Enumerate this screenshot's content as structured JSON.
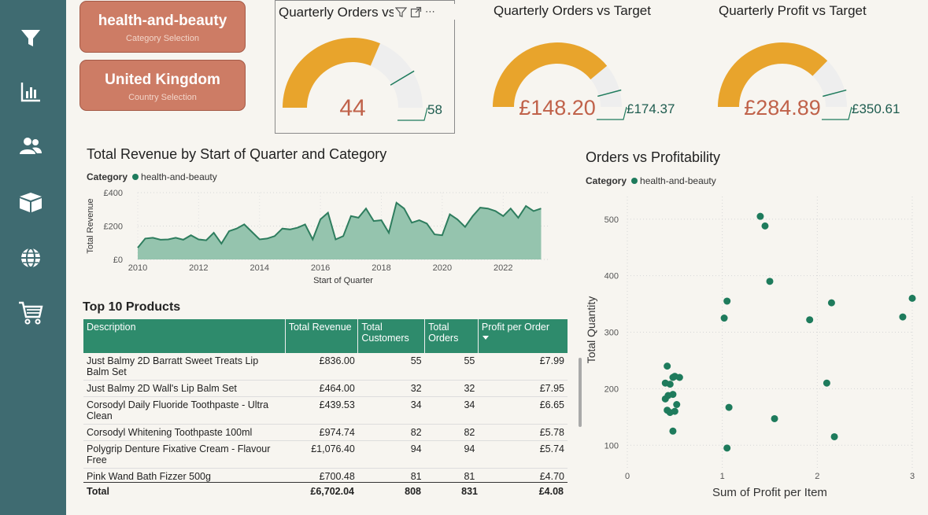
{
  "colors": {
    "sidebar": "#3f6b71",
    "slicer": "#cd7c65",
    "gauge_fill": "#e8a42c",
    "gauge_bg": "#eeeeee",
    "accent": "#1e7b5c",
    "area": "#95c4ae",
    "header": "#2e8b6c"
  },
  "nav": [
    {
      "name": "filter-icon"
    },
    {
      "name": "bar-chart-icon"
    },
    {
      "name": "users-icon"
    },
    {
      "name": "box-icon"
    },
    {
      "name": "globe-icon"
    },
    {
      "name": "cart-icon"
    }
  ],
  "slicers": [
    {
      "value": "health-and-beauty",
      "label": "Category Selection"
    },
    {
      "value": "United Kingdom",
      "label": "Country Selection"
    }
  ],
  "gauges": [
    {
      "title": "Quarterly Orders vs Target",
      "value_label": "44",
      "target_label": "58",
      "value": 44,
      "target": 58,
      "max": 70
    },
    {
      "title": "Quarterly Orders vs Target",
      "value_label": "£148.20",
      "target_label": "£174.37",
      "value": 148.2,
      "target": 174.37,
      "max": 190
    },
    {
      "title": "Quarterly Profit vs Target",
      "value_label": "£284.89",
      "target_label": "£350.61",
      "value": 284.89,
      "target": 350.61,
      "max": 382
    }
  ],
  "visual_header": {
    "filter": "filter-icon",
    "focus": "focus-mode-icon",
    "more": "⋯"
  },
  "revenue_chart": {
    "title": "Total Revenue by Start of Quarter and Category",
    "legend_label": "Category",
    "legend_item": "health-and-beauty",
    "chart_data": {
      "type": "area",
      "xlabel": "Start of Quarter",
      "ylabel": "Total Revenue",
      "xlim": [
        "2010-01-01",
        "2023-06-30"
      ],
      "ylim": [
        0,
        400
      ],
      "yticks": [
        "£0",
        "£200",
        "£400"
      ],
      "xticks": [
        "2010",
        "2012",
        "2014",
        "2016",
        "2018",
        "2020",
        "2022"
      ],
      "series": [
        {
          "name": "health-and-beauty",
          "x": [
            "2010-01",
            "2010-04",
            "2010-07",
            "2010-10",
            "2011-01",
            "2011-04",
            "2011-07",
            "2011-10",
            "2012-01",
            "2012-04",
            "2012-07",
            "2012-10",
            "2013-01",
            "2013-04",
            "2013-07",
            "2013-10",
            "2014-01",
            "2014-04",
            "2014-07",
            "2014-10",
            "2015-01",
            "2015-04",
            "2015-07",
            "2015-10",
            "2016-01",
            "2016-04",
            "2016-07",
            "2016-10",
            "2017-01",
            "2017-04",
            "2017-07",
            "2017-10",
            "2018-01",
            "2018-04",
            "2018-07",
            "2018-10",
            "2019-01",
            "2019-04",
            "2019-07",
            "2019-10",
            "2020-01",
            "2020-04",
            "2020-07",
            "2020-10",
            "2021-01",
            "2021-04",
            "2021-07",
            "2021-10",
            "2022-01",
            "2022-04",
            "2022-07",
            "2022-10",
            "2023-01",
            "2023-04"
          ],
          "values": [
            70,
            125,
            130,
            118,
            120,
            130,
            118,
            145,
            120,
            115,
            160,
            95,
            170,
            185,
            210,
            165,
            120,
            125,
            140,
            185,
            180,
            190,
            210,
            120,
            240,
            280,
            120,
            140,
            260,
            250,
            305,
            230,
            235,
            160,
            340,
            305,
            220,
            235,
            215,
            150,
            145,
            270,
            240,
            195,
            260,
            310,
            305,
            290,
            260,
            305,
            250,
            320,
            290,
            305
          ]
        }
      ]
    }
  },
  "top_products": {
    "title": "Top 10 Products",
    "columns": [
      "Description",
      "Total Revenue",
      "Total Customers",
      "Total Orders",
      "Profit per Order"
    ],
    "sort_icon": "sort-down-icon",
    "rows": [
      {
        "description": "Just Balmy 2D Barratt Sweet Treats Lip Balm Set",
        "revenue": "£836.00",
        "customers": "55",
        "orders": "55",
        "profit": "£7.99"
      },
      {
        "description": "Just Balmy 2D Wall's Lip Balm Set",
        "revenue": "£464.00",
        "customers": "32",
        "orders": "32",
        "profit": "£7.95"
      },
      {
        "description": "Corsodyl Daily Fluoride Toothpaste - Ultra Clean",
        "revenue": "£439.53",
        "customers": "34",
        "orders": "34",
        "profit": "£6.65"
      },
      {
        "description": "Corsodyl Whitening Toothpaste 100ml",
        "revenue": "£974.74",
        "customers": "82",
        "orders": "82",
        "profit": "£5.78"
      },
      {
        "description": "Polygrip Denture Fixative Cream - Flavour Free",
        "revenue": "£1,076.40",
        "customers": "94",
        "orders": "94",
        "profit": "£5.74"
      },
      {
        "description": "Pink Wand Bath Fizzer 500g",
        "revenue": "£700.48",
        "customers": "81",
        "orders": "81",
        "profit": "£4.70"
      }
    ],
    "total": {
      "description": "Total",
      "revenue": "£6,702.04",
      "customers": "808",
      "orders": "831",
      "profit": "£4.08"
    }
  },
  "scatter_chart": {
    "title": "Orders vs Profitability",
    "legend_label": "Category",
    "legend_item": "health-and-beauty",
    "chart_data": {
      "type": "scatter",
      "xlabel": "Sum of Profit per Item",
      "ylabel": "Total Quantity",
      "xlim": [
        0,
        3
      ],
      "ylim": [
        60,
        540
      ],
      "xticks": [
        "0",
        "1",
        "2",
        "3"
      ],
      "yticks": [
        "100",
        "200",
        "300",
        "400",
        "500"
      ],
      "points": [
        [
          1.4,
          505
        ],
        [
          1.45,
          488
        ],
        [
          1.5,
          390
        ],
        [
          1.05,
          355
        ],
        [
          1.02,
          325
        ],
        [
          2.15,
          352
        ],
        [
          1.92,
          322
        ],
        [
          3.0,
          360
        ],
        [
          2.9,
          327
        ],
        [
          2.1,
          210
        ],
        [
          2.18,
          115
        ],
        [
          1.55,
          147
        ],
        [
          1.07,
          167
        ],
        [
          1.05,
          95
        ],
        [
          0.42,
          240
        ],
        [
          0.5,
          222
        ],
        [
          0.48,
          220
        ],
        [
          0.55,
          220
        ],
        [
          0.4,
          210
        ],
        [
          0.45,
          208
        ],
        [
          0.43,
          188
        ],
        [
          0.48,
          190
        ],
        [
          0.4,
          182
        ],
        [
          0.52,
          172
        ],
        [
          0.42,
          162
        ],
        [
          0.45,
          158
        ],
        [
          0.5,
          160
        ],
        [
          0.48,
          125
        ]
      ]
    }
  }
}
